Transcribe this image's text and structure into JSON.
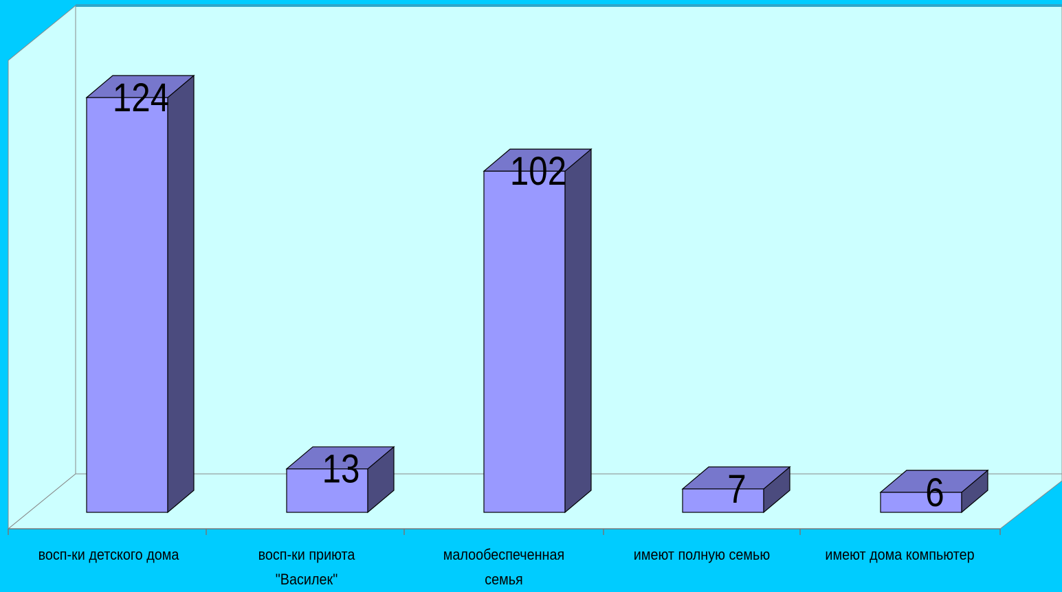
{
  "colors": {
    "page_background": "#00ccff",
    "plot_wall": "#ccffff",
    "bar_front": "#9999ff",
    "bar_top": "#7777cc",
    "bar_side": "#4b4b7e",
    "outline": "#000000"
  },
  "chart_data": {
    "type": "bar",
    "style": "3d-column",
    "categories": [
      "восп-ки детского дома",
      "восп-ки приюта\n\"Василек\"",
      "малообеспеченная\nсемья",
      "имеют полную семью",
      "имеют дома компьютер"
    ],
    "values": [
      124,
      13,
      102,
      7,
      6
    ],
    "data_labels": [
      "124",
      "13",
      "102",
      "7",
      "6"
    ],
    "title": "",
    "xlabel": "",
    "ylabel": "",
    "ylim": [
      0,
      140
    ],
    "grid": false,
    "legend": "none"
  }
}
